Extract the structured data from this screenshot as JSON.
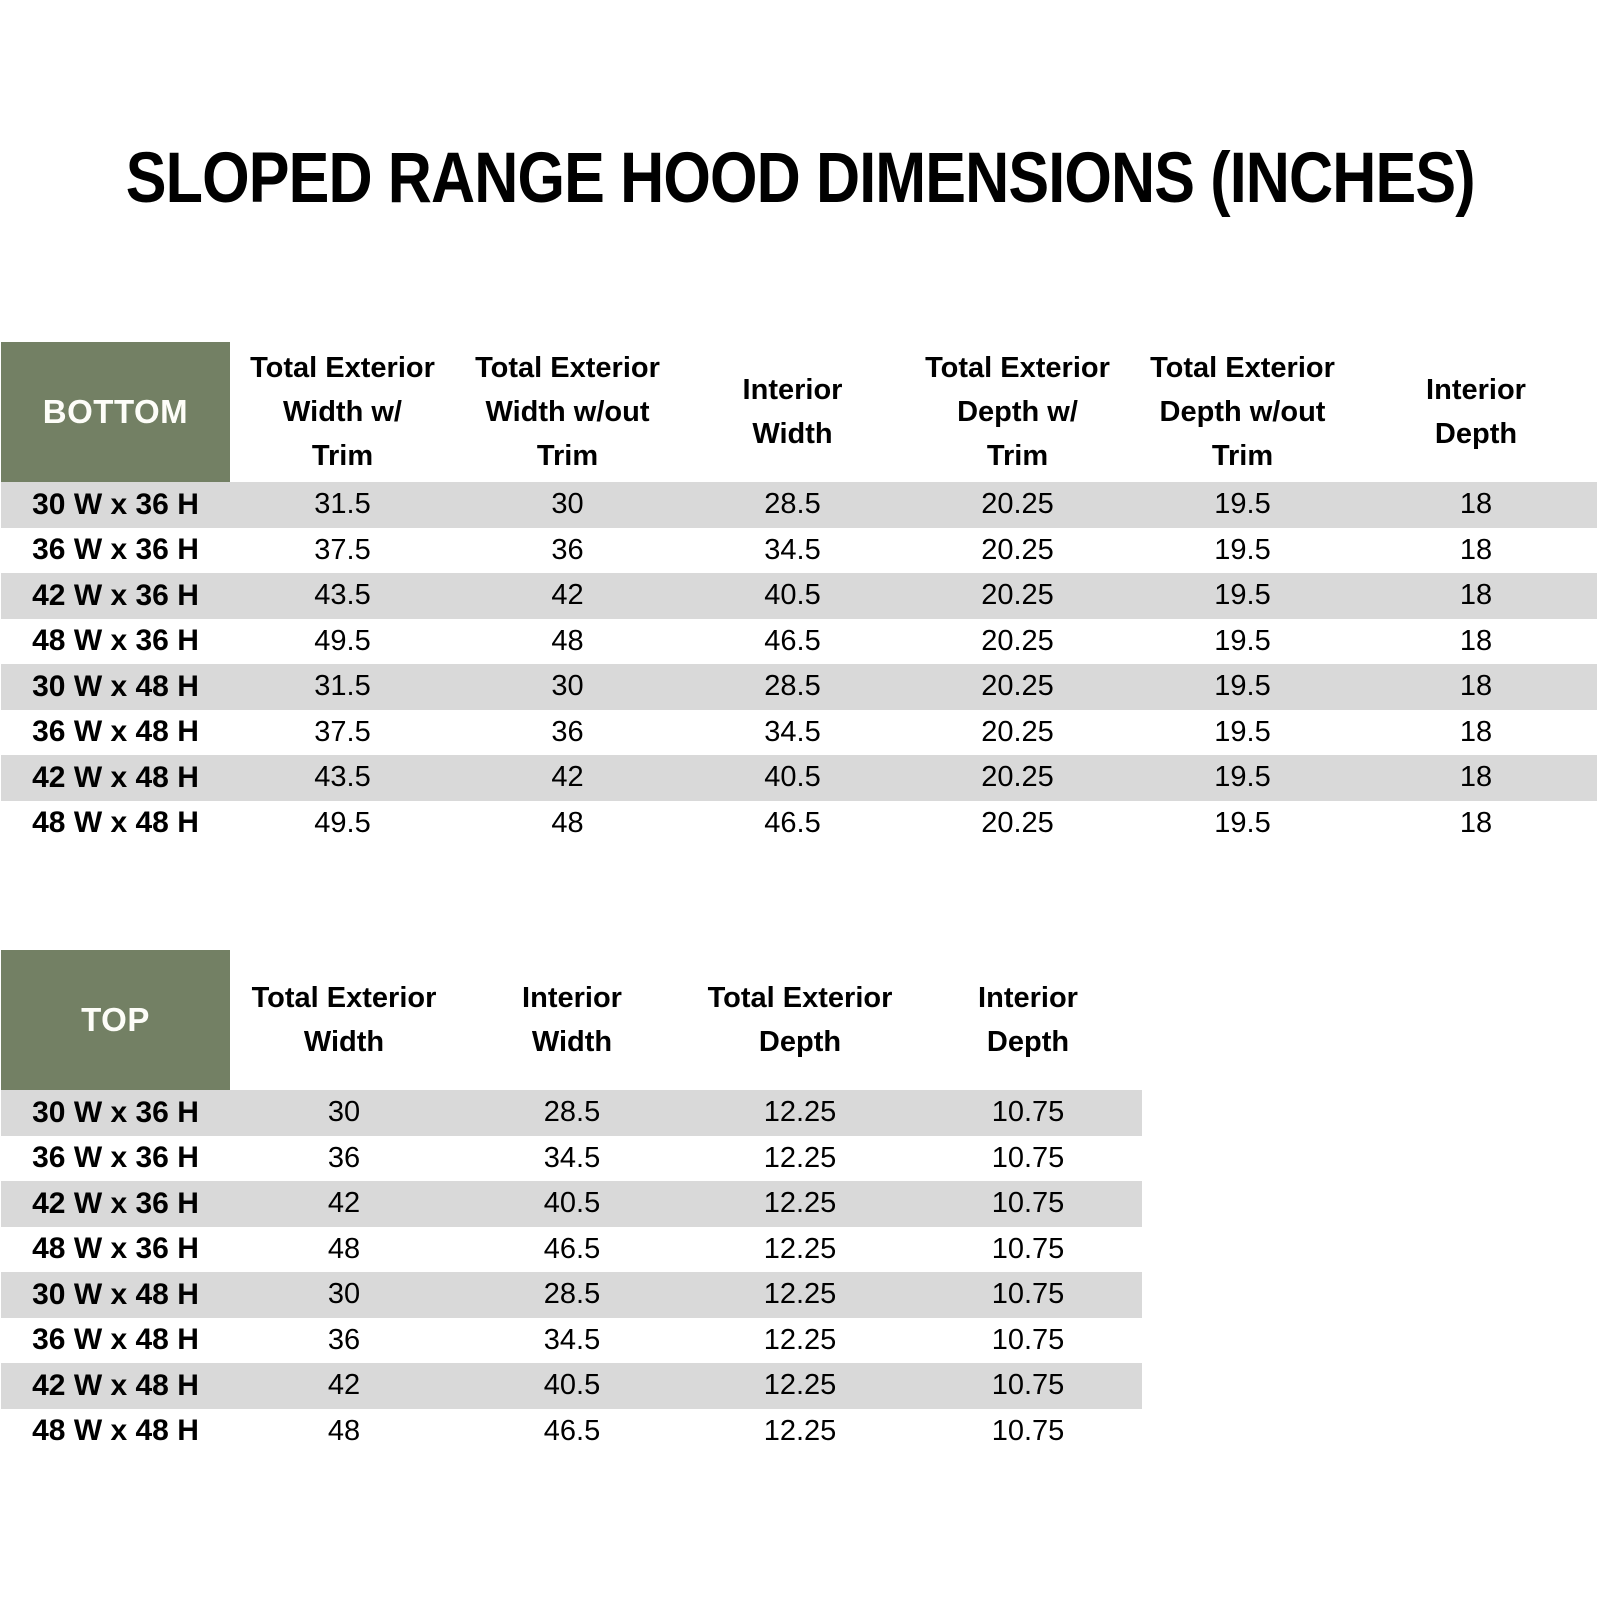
{
  "page": {
    "title": "SLOPED RANGE HOOD DIMENSIONS (INCHES)"
  },
  "colors": {
    "header_green": "#738064",
    "stripe_gray": "#d9d9d9",
    "text": "#000000",
    "corner_text": "#fdfdf8"
  },
  "bottom_table": {
    "corner_label": "BOTTOM",
    "columns": [
      "Total Exterior\nWidth w/\nTrim",
      "Total Exterior\nWidth w/out\nTrim",
      "Interior\nWidth",
      "Total Exterior\nDepth w/\nTrim",
      "Total Exterior\nDepth w/out\nTrim",
      "Interior\nDepth"
    ],
    "rows": [
      {
        "label": "30 W x 36 H",
        "values": [
          "31.5",
          "30",
          "28.5",
          "20.25",
          "19.5",
          "18"
        ]
      },
      {
        "label": "36 W x 36 H",
        "values": [
          "37.5",
          "36",
          "34.5",
          "20.25",
          "19.5",
          "18"
        ]
      },
      {
        "label": "42 W x 36 H",
        "values": [
          "43.5",
          "42",
          "40.5",
          "20.25",
          "19.5",
          "18"
        ]
      },
      {
        "label": "48 W x 36 H",
        "values": [
          "49.5",
          "48",
          "46.5",
          "20.25",
          "19.5",
          "18"
        ]
      },
      {
        "label": "30 W x 48 H",
        "values": [
          "31.5",
          "30",
          "28.5",
          "20.25",
          "19.5",
          "18"
        ]
      },
      {
        "label": "36 W x 48 H",
        "values": [
          "37.5",
          "36",
          "34.5",
          "20.25",
          "19.5",
          "18"
        ]
      },
      {
        "label": "42 W x 48 H",
        "values": [
          "43.5",
          "42",
          "40.5",
          "20.25",
          "19.5",
          "18"
        ]
      },
      {
        "label": "48 W x 48 H",
        "values": [
          "49.5",
          "48",
          "46.5",
          "20.25",
          "19.5",
          "18"
        ]
      }
    ]
  },
  "top_table": {
    "corner_label": "TOP",
    "columns": [
      "Total Exterior\nWidth",
      "Interior\nWidth",
      "Total Exterior\nDepth",
      "Interior\nDepth"
    ],
    "rows": [
      {
        "label": "30 W x 36 H",
        "values": [
          "30",
          "28.5",
          "12.25",
          "10.75"
        ]
      },
      {
        "label": "36 W x 36 H",
        "values": [
          "36",
          "34.5",
          "12.25",
          "10.75"
        ]
      },
      {
        "label": "42 W x 36 H",
        "values": [
          "42",
          "40.5",
          "12.25",
          "10.75"
        ]
      },
      {
        "label": "48 W x 36 H",
        "values": [
          "48",
          "46.5",
          "12.25",
          "10.75"
        ]
      },
      {
        "label": "30 W x 48 H",
        "values": [
          "30",
          "28.5",
          "12.25",
          "10.75"
        ]
      },
      {
        "label": "36 W x 48 H",
        "values": [
          "36",
          "34.5",
          "12.25",
          "10.75"
        ]
      },
      {
        "label": "42 W x 48 H",
        "values": [
          "42",
          "40.5",
          "12.25",
          "10.75"
        ]
      },
      {
        "label": "48 W x 48 H",
        "values": [
          "48",
          "46.5",
          "12.25",
          "10.75"
        ]
      }
    ]
  }
}
